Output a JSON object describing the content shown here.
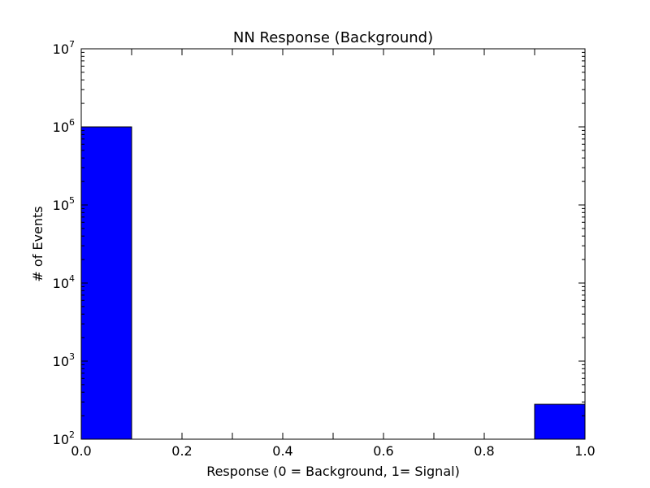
{
  "chart_data": {
    "type": "bar",
    "title": "NN Response (Background)",
    "xlabel": "Response (0 = Background, 1= Signal)",
    "ylabel": "# of Events",
    "xlim": [
      0.0,
      1.0
    ],
    "ylim": [
      100,
      10000000
    ],
    "yscale": "log",
    "grid": false,
    "legend": "none",
    "x_ticks": [
      "0.0",
      "0.2",
      "0.4",
      "0.6",
      "0.8",
      "1.0"
    ],
    "y_ticks": [
      {
        "base": "10",
        "exp": "2"
      },
      {
        "base": "10",
        "exp": "3"
      },
      {
        "base": "10",
        "exp": "4"
      },
      {
        "base": "10",
        "exp": "5"
      },
      {
        "base": "10",
        "exp": "6"
      },
      {
        "base": "10",
        "exp": "7"
      }
    ],
    "bins": [
      {
        "x0": 0.0,
        "x1": 0.1,
        "value": 1000000
      },
      {
        "x0": 0.9,
        "x1": 1.0,
        "value": 280
      }
    ],
    "bar_color": "#0000ff",
    "edge_color": "#000000"
  }
}
